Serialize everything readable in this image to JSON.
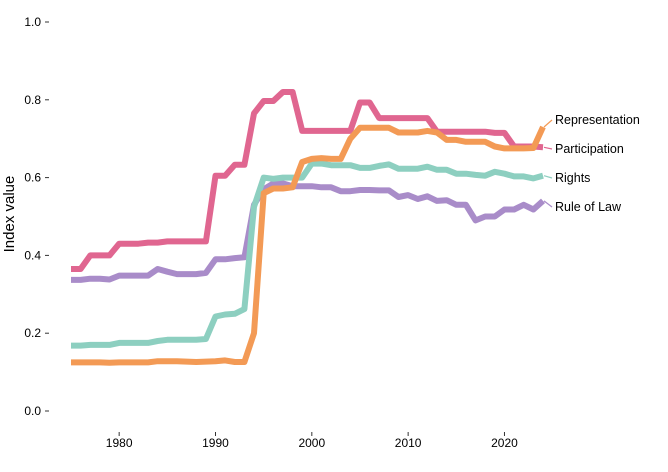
{
  "chart_data": {
    "type": "line",
    "title": "",
    "xlabel": "",
    "ylabel": "Index value",
    "xlim": [
      1975,
      2024
    ],
    "ylim": [
      0,
      1
    ],
    "x_ticks": [
      1980,
      1990,
      2000,
      2010,
      2020
    ],
    "y_ticks": [
      0,
      0.2,
      0.4,
      0.6,
      0.8,
      1
    ],
    "y_tick_labels": [
      "0.0",
      "0.2",
      "0.4",
      "0.6",
      "0.8",
      "1.0"
    ],
    "grid": false,
    "legend": "direct labels at right end of lines",
    "x": [
      1975,
      1976,
      1977,
      1978,
      1979,
      1980,
      1981,
      1982,
      1983,
      1984,
      1985,
      1986,
      1987,
      1988,
      1989,
      1990,
      1991,
      1992,
      1993,
      1994,
      1995,
      1996,
      1997,
      1998,
      1999,
      2000,
      2001,
      2002,
      2003,
      2004,
      2005,
      2006,
      2007,
      2008,
      2009,
      2010,
      2011,
      2012,
      2013,
      2014,
      2015,
      2016,
      2017,
      2018,
      2019,
      2020,
      2021,
      2022,
      2023,
      2024
    ],
    "series": [
      {
        "name": "Representation",
        "color": "#F39A55",
        "values": [
          0.125,
          0.125,
          0.125,
          0.125,
          0.124,
          0.125,
          0.125,
          0.125,
          0.125,
          0.128,
          0.128,
          0.128,
          0.127,
          0.126,
          0.127,
          0.128,
          0.13,
          0.126,
          0.126,
          0.2,
          0.56,
          0.572,
          0.572,
          0.575,
          0.64,
          0.648,
          0.65,
          0.648,
          0.648,
          0.7,
          0.728,
          0.728,
          0.728,
          0.728,
          0.716,
          0.716,
          0.716,
          0.72,
          0.716,
          0.697,
          0.697,
          0.692,
          0.692,
          0.692,
          0.68,
          0.675,
          0.675,
          0.675,
          0.676,
          0.73
        ]
      },
      {
        "name": "Participation",
        "color": "#E06690",
        "values": [
          0.365,
          0.365,
          0.4,
          0.4,
          0.4,
          0.43,
          0.43,
          0.43,
          0.433,
          0.433,
          0.436,
          0.436,
          0.436,
          0.436,
          0.436,
          0.605,
          0.605,
          0.633,
          0.633,
          0.765,
          0.797,
          0.797,
          0.82,
          0.82,
          0.72,
          0.72,
          0.72,
          0.72,
          0.72,
          0.72,
          0.793,
          0.793,
          0.753,
          0.753,
          0.753,
          0.753,
          0.753,
          0.753,
          0.718,
          0.718,
          0.718,
          0.718,
          0.718,
          0.718,
          0.715,
          0.715,
          0.68,
          0.68,
          0.68,
          0.678
        ]
      },
      {
        "name": "Rights",
        "color": "#8DCFC0",
        "values": [
          0.168,
          0.168,
          0.17,
          0.17,
          0.17,
          0.175,
          0.175,
          0.175,
          0.175,
          0.18,
          0.183,
          0.183,
          0.183,
          0.183,
          0.185,
          0.243,
          0.248,
          0.25,
          0.262,
          0.525,
          0.6,
          0.597,
          0.6,
          0.6,
          0.6,
          0.636,
          0.636,
          0.632,
          0.632,
          0.632,
          0.625,
          0.625,
          0.63,
          0.634,
          0.623,
          0.623,
          0.623,
          0.628,
          0.62,
          0.62,
          0.61,
          0.61,
          0.607,
          0.605,
          0.615,
          0.61,
          0.603,
          0.603,
          0.598,
          0.605
        ]
      },
      {
        "name": "Rule of Law",
        "color": "#A98CC9",
        "values": [
          0.337,
          0.337,
          0.34,
          0.34,
          0.338,
          0.348,
          0.348,
          0.348,
          0.348,
          0.365,
          0.358,
          0.352,
          0.352,
          0.352,
          0.355,
          0.39,
          0.39,
          0.393,
          0.395,
          0.53,
          0.57,
          0.585,
          0.585,
          0.578,
          0.578,
          0.578,
          0.575,
          0.575,
          0.565,
          0.565,
          0.568,
          0.568,
          0.567,
          0.567,
          0.55,
          0.555,
          0.545,
          0.552,
          0.54,
          0.542,
          0.53,
          0.53,
          0.49,
          0.5,
          0.5,
          0.518,
          0.518,
          0.53,
          0.518,
          0.54
        ]
      }
    ]
  }
}
